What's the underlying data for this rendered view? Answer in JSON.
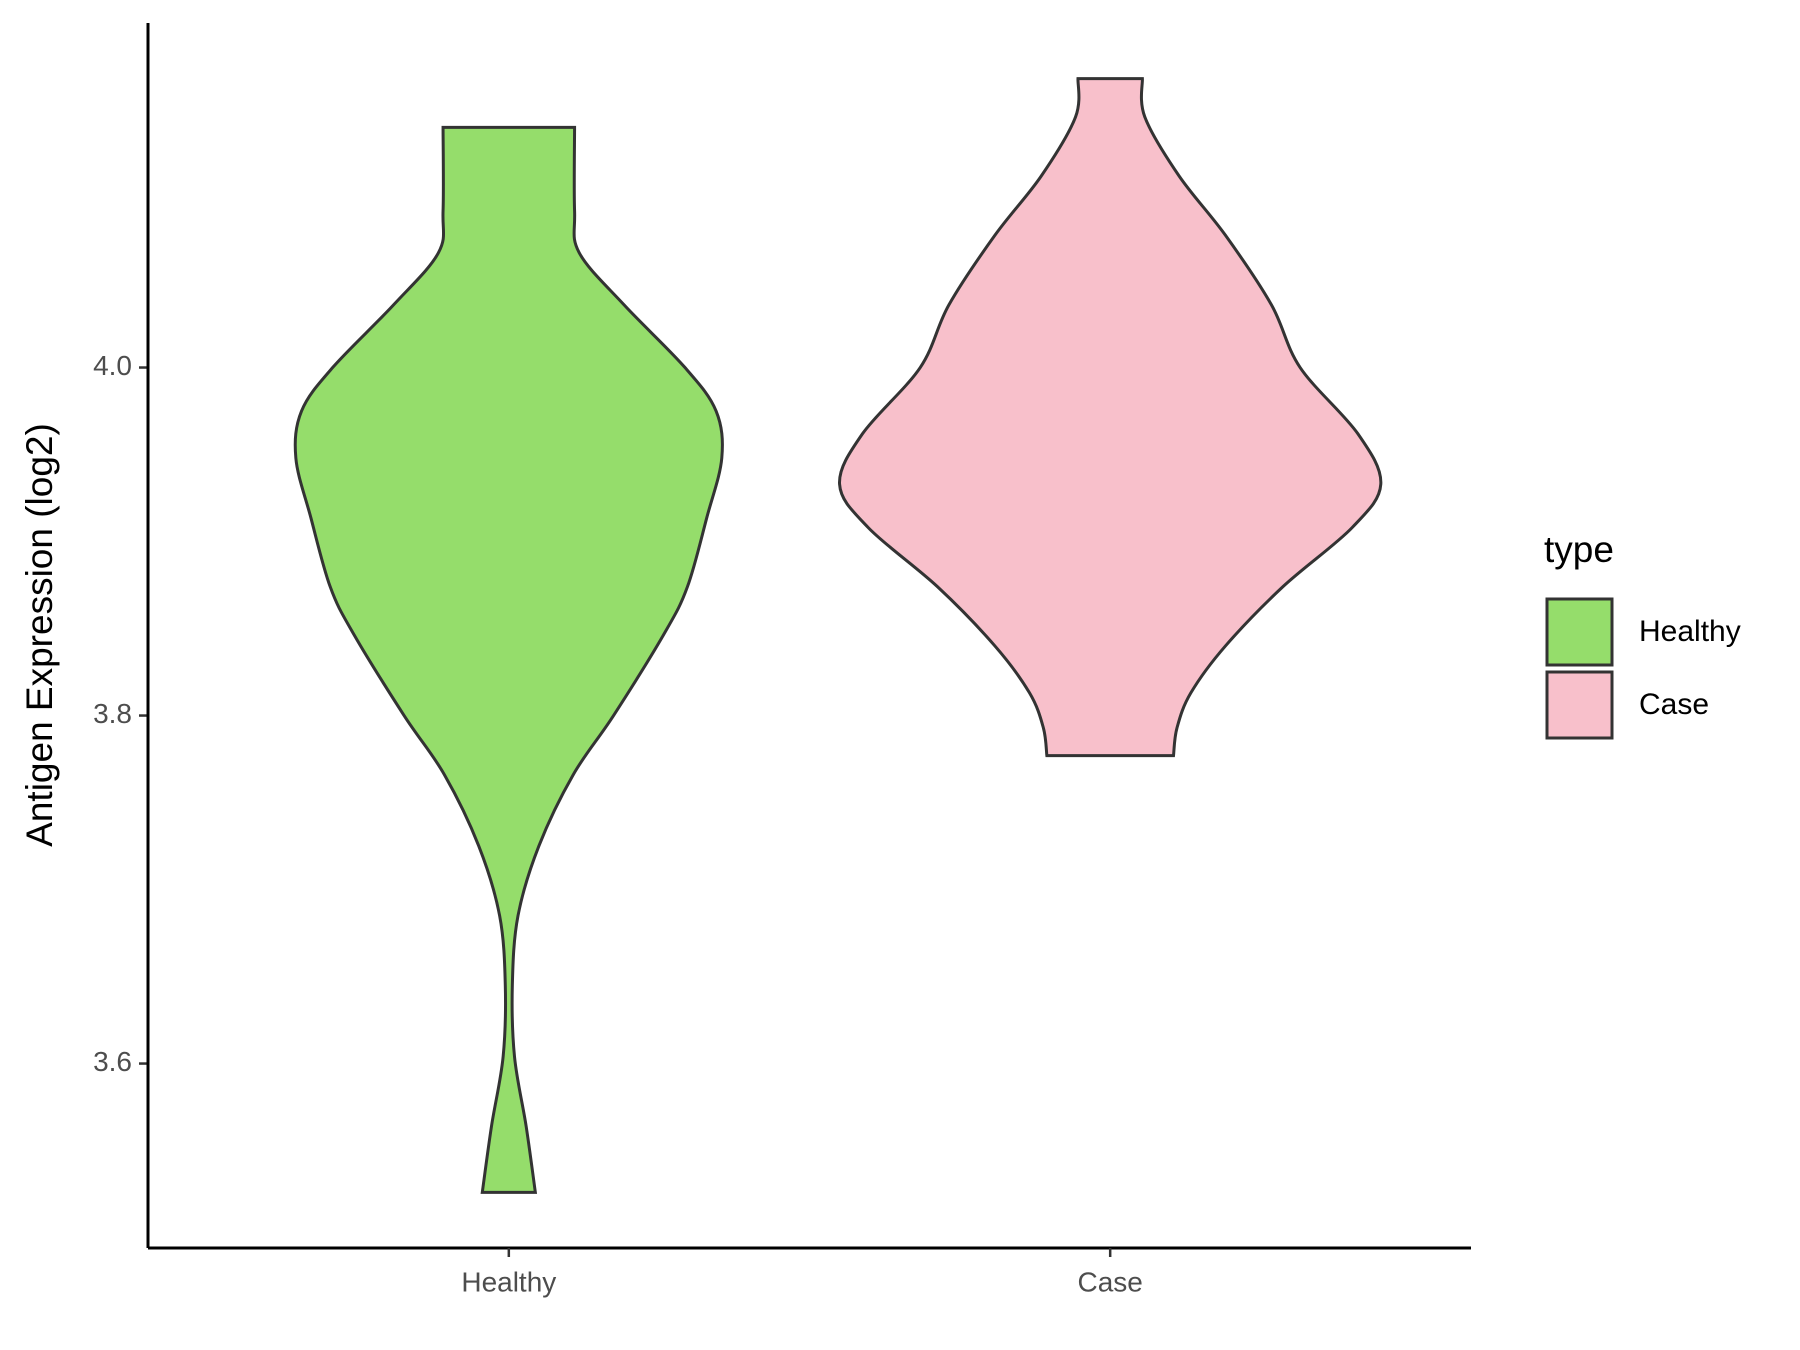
{
  "chart_data": {
    "type": "violin",
    "y_label": "Antigen Expression (log2)",
    "categories": [
      "Healthy",
      "Case"
    ],
    "series": [
      {
        "name": "Healthy",
        "color": "#95DD6B",
        "y": [
          4.138,
          4.09,
          4.066,
          4.036,
          4.0,
          3.975,
          3.948,
          3.914,
          3.874,
          3.847,
          3.8,
          3.766,
          3.725,
          3.685,
          3.645,
          3.604,
          3.564,
          3.526
        ],
        "density": [
          0.243,
          0.243,
          0.26,
          0.426,
          0.651,
          0.766,
          0.787,
          0.732,
          0.66,
          0.574,
          0.387,
          0.238,
          0.111,
          0.034,
          0.013,
          0.021,
          0.064,
          0.098
        ]
      },
      {
        "name": "Case",
        "color": "#F8C0CB",
        "y": [
          4.166,
          4.144,
          4.11,
          4.076,
          4.036,
          4.0,
          3.962,
          3.933,
          3.908,
          3.874,
          3.84,
          3.813,
          3.793,
          3.777
        ],
        "density": [
          0.119,
          0.128,
          0.255,
          0.426,
          0.596,
          0.702,
          0.915,
          1.0,
          0.894,
          0.638,
          0.426,
          0.298,
          0.247,
          0.234
        ]
      }
    ],
    "ylim": [
      3.494,
      4.198
    ],
    "yticks": [
      3.6,
      3.8,
      {
        "value": 4.0,
        "label": "4.0"
      }
    ],
    "legend_title": "type",
    "legend_position": "right"
  }
}
